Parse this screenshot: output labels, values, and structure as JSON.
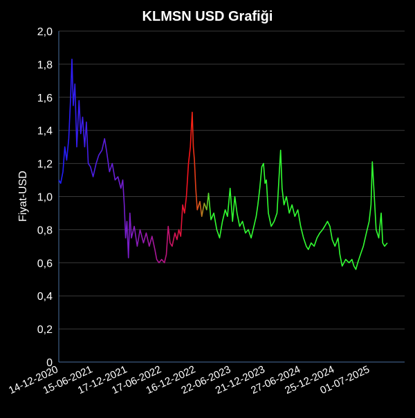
{
  "chart_data": {
    "type": "line",
    "title": "KLMSN USD Grafiği",
    "xlabel": "",
    "ylabel": "Fiyat-USD",
    "ylim": [
      0,
      2.0
    ],
    "yticks": [
      "0",
      "0,2",
      "0,4",
      "0,6",
      "0,8",
      "1,0",
      "1,2",
      "1,4",
      "1,6",
      "1,8",
      "2,0"
    ],
    "xticks": [
      "14-12-2020",
      "15-06-2021",
      "17-12-2021",
      "17-06-2022",
      "16-12-2022",
      "22-06-2023",
      "21-12-2023",
      "27-06-2024",
      "25-12-2024",
      "01-07-2025"
    ],
    "x_range": [
      "2020-12-14",
      "2025-12-31"
    ],
    "grid": true,
    "color_gradient": [
      "#1e1eff",
      "#7a1ecc",
      "#b4148c",
      "#ff1414",
      "#d2691e",
      "#32ff32"
    ],
    "points": [
      [
        "2020-12-14",
        1.1
      ],
      [
        "2020-12-24",
        1.08
      ],
      [
        "2021-01-05",
        1.15
      ],
      [
        "2021-01-15",
        1.3
      ],
      [
        "2021-01-25",
        1.22
      ],
      [
        "2021-02-05",
        1.35
      ],
      [
        "2021-02-15",
        1.6
      ],
      [
        "2021-02-22",
        1.83
      ],
      [
        "2021-03-01",
        1.55
      ],
      [
        "2021-03-10",
        1.68
      ],
      [
        "2021-03-20",
        1.3
      ],
      [
        "2021-04-01",
        1.58
      ],
      [
        "2021-04-10",
        1.38
      ],
      [
        "2021-04-20",
        1.48
      ],
      [
        "2021-05-01",
        1.3
      ],
      [
        "2021-05-10",
        1.45
      ],
      [
        "2021-05-20",
        1.2
      ],
      [
        "2021-06-01",
        1.18
      ],
      [
        "2021-06-15",
        1.12
      ],
      [
        "2021-07-01",
        1.2
      ],
      [
        "2021-07-15",
        1.25
      ],
      [
        "2021-08-01",
        1.28
      ],
      [
        "2021-08-15",
        1.35
      ],
      [
        "2021-08-25",
        1.28
      ],
      [
        "2021-09-10",
        1.15
      ],
      [
        "2021-09-25",
        1.2
      ],
      [
        "2021-10-10",
        1.1
      ],
      [
        "2021-10-25",
        1.12
      ],
      [
        "2021-11-10",
        1.05
      ],
      [
        "2021-11-20",
        1.1
      ],
      [
        "2021-11-28",
        0.95
      ],
      [
        "2021-12-05",
        0.75
      ],
      [
        "2021-12-12",
        0.85
      ],
      [
        "2021-12-20",
        0.63
      ],
      [
        "2021-12-28",
        0.9
      ],
      [
        "2022-01-05",
        0.75
      ],
      [
        "2022-01-20",
        0.82
      ],
      [
        "2022-02-05",
        0.7
      ],
      [
        "2022-02-20",
        0.8
      ],
      [
        "2022-03-10",
        0.72
      ],
      [
        "2022-03-25",
        0.78
      ],
      [
        "2022-04-10",
        0.7
      ],
      [
        "2022-04-25",
        0.76
      ],
      [
        "2022-05-10",
        0.68
      ],
      [
        "2022-05-20",
        0.62
      ],
      [
        "2022-06-01",
        0.6
      ],
      [
        "2022-06-15",
        0.62
      ],
      [
        "2022-06-30",
        0.6
      ],
      [
        "2022-07-10",
        0.65
      ],
      [
        "2022-07-20",
        0.82
      ],
      [
        "2022-07-30",
        0.72
      ],
      [
        "2022-08-10",
        0.7
      ],
      [
        "2022-08-25",
        0.78
      ],
      [
        "2022-09-05",
        0.74
      ],
      [
        "2022-09-15",
        0.8
      ],
      [
        "2022-09-25",
        0.76
      ],
      [
        "2022-10-05",
        0.95
      ],
      [
        "2022-10-15",
        0.9
      ],
      [
        "2022-10-25",
        1.0
      ],
      [
        "2022-11-05",
        1.2
      ],
      [
        "2022-11-15",
        1.3
      ],
      [
        "2022-11-25",
        1.51
      ],
      [
        "2022-12-01",
        1.3
      ],
      [
        "2022-12-07",
        1.22
      ],
      [
        "2022-12-14",
        1.05
      ],
      [
        "2022-12-22",
        0.92
      ],
      [
        "2023-01-05",
        0.97
      ],
      [
        "2023-01-15",
        0.88
      ],
      [
        "2023-01-28",
        0.96
      ],
      [
        "2023-02-10",
        0.92
      ],
      [
        "2023-02-20",
        1.02
      ],
      [
        "2023-03-05",
        0.86
      ],
      [
        "2023-03-20",
        0.9
      ],
      [
        "2023-04-05",
        0.8
      ],
      [
        "2023-04-20",
        0.75
      ],
      [
        "2023-05-05",
        0.85
      ],
      [
        "2023-05-20",
        0.92
      ],
      [
        "2023-06-01",
        0.88
      ],
      [
        "2023-06-15",
        1.05
      ],
      [
        "2023-06-28",
        0.85
      ],
      [
        "2023-07-10",
        1.0
      ],
      [
        "2023-07-22",
        0.9
      ],
      [
        "2023-08-05",
        0.82
      ],
      [
        "2023-08-20",
        0.85
      ],
      [
        "2023-09-05",
        0.78
      ],
      [
        "2023-09-20",
        0.8
      ],
      [
        "2023-10-05",
        0.75
      ],
      [
        "2023-10-20",
        0.82
      ],
      [
        "2023-11-01",
        0.88
      ],
      [
        "2023-11-10",
        0.95
      ],
      [
        "2023-11-20",
        1.05
      ],
      [
        "2023-12-01",
        1.18
      ],
      [
        "2023-12-10",
        1.2
      ],
      [
        "2023-12-18",
        1.08
      ],
      [
        "2023-12-25",
        1.1
      ],
      [
        "2024-01-05",
        0.9
      ],
      [
        "2024-01-20",
        0.82
      ],
      [
        "2024-02-05",
        0.85
      ],
      [
        "2024-02-20",
        0.9
      ],
      [
        "2024-03-01",
        1.1
      ],
      [
        "2024-03-10",
        1.28
      ],
      [
        "2024-03-18",
        1.05
      ],
      [
        "2024-03-28",
        0.95
      ],
      [
        "2024-04-10",
        1.0
      ],
      [
        "2024-04-25",
        0.9
      ],
      [
        "2024-05-10",
        0.95
      ],
      [
        "2024-05-25",
        0.88
      ],
      [
        "2024-06-10",
        0.92
      ],
      [
        "2024-06-25",
        0.82
      ],
      [
        "2024-07-10",
        0.75
      ],
      [
        "2024-07-25",
        0.7
      ],
      [
        "2024-08-05",
        0.68
      ],
      [
        "2024-08-20",
        0.72
      ],
      [
        "2024-09-05",
        0.7
      ],
      [
        "2024-09-20",
        0.75
      ],
      [
        "2024-10-05",
        0.78
      ],
      [
        "2024-10-20",
        0.8
      ],
      [
        "2024-11-05",
        0.83
      ],
      [
        "2024-11-15",
        0.85
      ],
      [
        "2024-11-28",
        0.82
      ],
      [
        "2024-12-10",
        0.74
      ],
      [
        "2024-12-25",
        0.7
      ],
      [
        "2025-01-10",
        0.75
      ],
      [
        "2025-01-20",
        0.65
      ],
      [
        "2025-02-01",
        0.58
      ],
      [
        "2025-02-20",
        0.62
      ],
      [
        "2025-03-10",
        0.6
      ],
      [
        "2025-03-25",
        0.62
      ],
      [
        "2025-04-05",
        0.58
      ],
      [
        "2025-04-15",
        0.56
      ],
      [
        "2025-04-25",
        0.6
      ],
      [
        "2025-05-10",
        0.65
      ],
      [
        "2025-05-25",
        0.7
      ],
      [
        "2025-06-10",
        0.78
      ],
      [
        "2025-06-25",
        0.85
      ],
      [
        "2025-07-05",
        0.95
      ],
      [
        "2025-07-12",
        1.21
      ],
      [
        "2025-07-20",
        1.05
      ],
      [
        "2025-08-01",
        0.8
      ],
      [
        "2025-08-15",
        0.75
      ],
      [
        "2025-08-28",
        0.9
      ],
      [
        "2025-09-05",
        0.72
      ],
      [
        "2025-09-15",
        0.7
      ],
      [
        "2025-09-30",
        0.72
      ]
    ]
  }
}
